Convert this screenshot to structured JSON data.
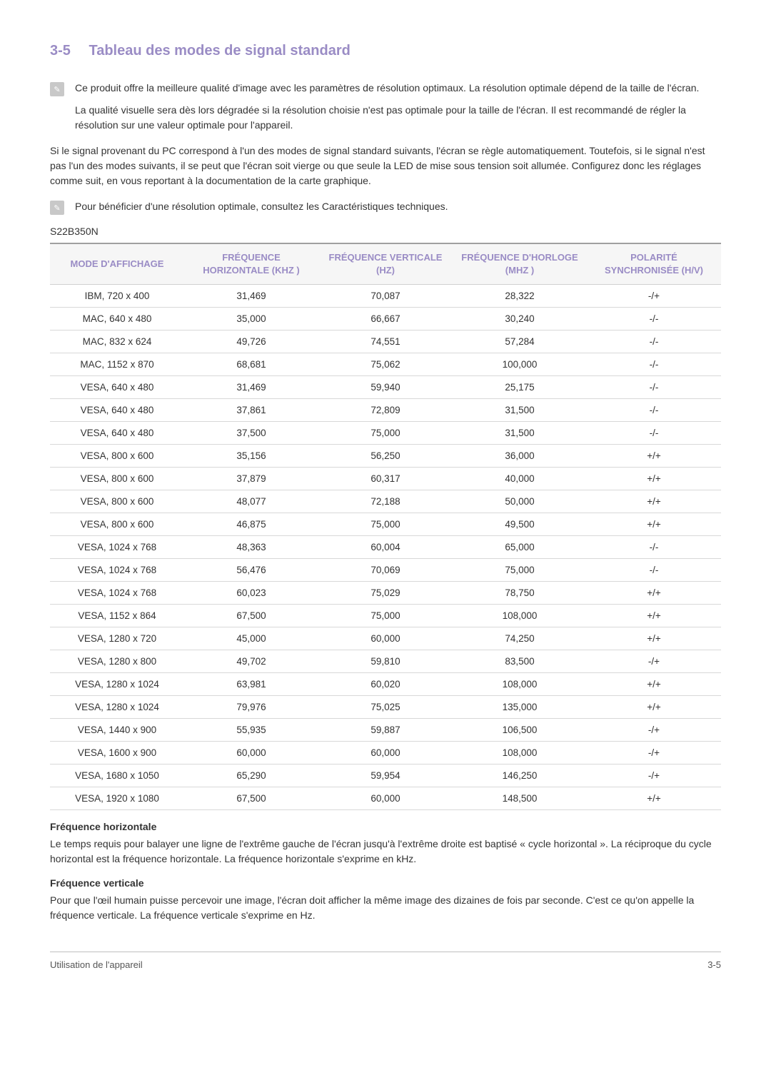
{
  "section": {
    "number": "3-5",
    "title": "Tableau des modes de signal standard"
  },
  "note1_p1": "Ce produit offre la meilleure qualité d'image avec les paramètres de résolution optimaux. La résolution optimale dépend de la taille de l'écran.",
  "note1_p2": "La qualité visuelle sera dès lors dégradée si la résolution choisie n'est pas optimale pour la taille de l'écran. Il est recommandé de régler la résolution sur une valeur optimale pour l'appareil.",
  "para1": "Si le signal provenant du PC correspond à l'un des modes de signal standard suivants, l'écran se règle automatiquement. Toutefois, si le signal n'est pas l'un des modes suivants, il se peut que l'écran soit vierge ou que seule la LED de mise sous tension soit allumée. Configurez donc les réglages comme suit, en vous reportant à la documentation de la carte graphique.",
  "note2": "Pour bénéficier d'une résolution optimale, consultez les Caractéristiques techniques.",
  "model": "S22B350N",
  "table": {
    "header_color": "#9a8cc5",
    "header_bg": "#f6f6f6",
    "border_color": "#d0d0d0",
    "columns": [
      "MODE D'AFFICHAGE",
      "FRÉQUENCE HORIZONTALE (KHZ )",
      "FRÉQUENCE VERTICALE (HZ)",
      "FRÉQUENCE D'HORLOGE (MHZ )",
      "POLARITÉ SYNCHRONISÉE (H/V)"
    ],
    "rows": [
      [
        "IBM, 720 x 400",
        "31,469",
        "70,087",
        "28,322",
        "-/+"
      ],
      [
        "MAC, 640 x 480",
        "35,000",
        "66,667",
        "30,240",
        "-/-"
      ],
      [
        "MAC, 832 x 624",
        "49,726",
        "74,551",
        "57,284",
        "-/-"
      ],
      [
        "MAC, 1152 x 870",
        "68,681",
        "75,062",
        "100,000",
        "-/-"
      ],
      [
        "VESA, 640 x 480",
        "31,469",
        "59,940",
        "25,175",
        "-/-"
      ],
      [
        "VESA, 640 x 480",
        "37,861",
        "72,809",
        "31,500",
        "-/-"
      ],
      [
        "VESA, 640 x 480",
        "37,500",
        "75,000",
        "31,500",
        "-/-"
      ],
      [
        "VESA, 800 x 600",
        "35,156",
        "56,250",
        "36,000",
        "+/+"
      ],
      [
        "VESA, 800 x 600",
        "37,879",
        "60,317",
        "40,000",
        "+/+"
      ],
      [
        "VESA, 800 x 600",
        "48,077",
        "72,188",
        "50,000",
        "+/+"
      ],
      [
        "VESA, 800 x 600",
        "46,875",
        "75,000",
        "49,500",
        "+/+"
      ],
      [
        "VESA, 1024 x 768",
        "48,363",
        "60,004",
        "65,000",
        "-/-"
      ],
      [
        "VESA, 1024 x 768",
        "56,476",
        "70,069",
        "75,000",
        "-/-"
      ],
      [
        "VESA, 1024 x 768",
        "60,023",
        "75,029",
        "78,750",
        "+/+"
      ],
      [
        "VESA, 1152 x 864",
        "67,500",
        "75,000",
        "108,000",
        "+/+"
      ],
      [
        "VESA, 1280 x 720",
        "45,000",
        "60,000",
        "74,250",
        "+/+"
      ],
      [
        "VESA, 1280 x 800",
        "49,702",
        "59,810",
        "83,500",
        "-/+"
      ],
      [
        "VESA, 1280 x 1024",
        "63,981",
        "60,020",
        "108,000",
        "+/+"
      ],
      [
        "VESA, 1280 x 1024",
        "79,976",
        "75,025",
        "135,000",
        "+/+"
      ],
      [
        "VESA, 1440 x 900",
        "55,935",
        "59,887",
        "106,500",
        "-/+"
      ],
      [
        "VESA, 1600 x 900",
        "60,000",
        "60,000",
        "108,000",
        "-/+"
      ],
      [
        "VESA, 1680 x 1050",
        "65,290",
        "59,954",
        "146,250",
        "-/+"
      ],
      [
        "VESA, 1920 x 1080",
        "67,500",
        "60,000",
        "148,500",
        "+/+"
      ]
    ]
  },
  "freq_h_title": "Fréquence horizontale",
  "freq_h_text": "Le temps requis pour balayer une ligne de l'extrême gauche de l'écran jusqu'à l'extrême droite est baptisé « cycle horizontal ». La réciproque du cycle horizontal est la fréquence horizontale. La fréquence horizontale s'exprime en kHz.",
  "freq_v_title": "Fréquence verticale",
  "freq_v_text": "Pour que l'œil humain puisse percevoir une image, l'écran doit afficher la même image des dizaines de fois par seconde. C'est ce qu'on appelle la fréquence verticale. La fréquence verticale s'exprime en Hz.",
  "footer": {
    "left": "Utilisation de l'appareil",
    "right": "3-5"
  }
}
